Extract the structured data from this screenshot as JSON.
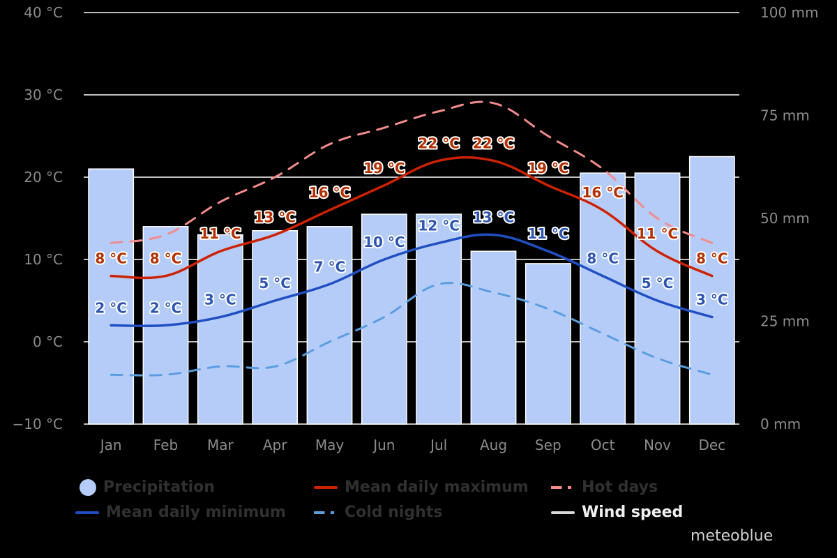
{
  "chart_data": {
    "type": "bar+line",
    "categories": [
      "Jan",
      "Feb",
      "Mar",
      "Apr",
      "May",
      "Jun",
      "Jul",
      "Aug",
      "Sep",
      "Oct",
      "Nov",
      "Dec"
    ],
    "precipitation": {
      "name": "Precipitation",
      "unit": "mm",
      "values": [
        62,
        48,
        46,
        47,
        48,
        51,
        51,
        42,
        39,
        61,
        61,
        65
      ]
    },
    "series": [
      {
        "name": "Mean daily maximum",
        "key": "max",
        "color": "#cc2200",
        "label_color": "#b33000",
        "style": "solid",
        "values": [
          8,
          8,
          11,
          13,
          16,
          19,
          22,
          22,
          19,
          16,
          11,
          8
        ],
        "labels": [
          "8 °C",
          "8 °C",
          "11 °C",
          "13 °C",
          "16 °C",
          "19 °C",
          "22 °C",
          "22 °C",
          "19 °C",
          "16 °C",
          "11 °C",
          "8 °C"
        ]
      },
      {
        "name": "Mean daily minimum",
        "key": "min",
        "color": "#1f4fc2",
        "label_color": "#2e55b0",
        "style": "solid",
        "values": [
          2,
          2,
          3,
          5,
          7,
          10,
          12,
          13,
          11,
          8,
          5,
          3
        ],
        "labels": [
          "2 °C",
          "2 °C",
          "3 °C",
          "5 °C",
          "7 °C",
          "10 °C",
          "12 °C",
          "13 °C",
          "11 °C",
          "8 °C",
          "5 °C",
          "3 °C"
        ]
      },
      {
        "name": "Hot days",
        "key": "hot",
        "color": "#f28c8c",
        "style": "dashed",
        "values": [
          12,
          13,
          17,
          20,
          24,
          26,
          28,
          29,
          25,
          21,
          15,
          12
        ]
      },
      {
        "name": "Cold nights",
        "key": "cold",
        "color": "#5b9ee0",
        "style": "dashed",
        "values": [
          -4,
          -4,
          -3,
          -3,
          0,
          3,
          7,
          6,
          4,
          1,
          -2,
          -4
        ]
      }
    ],
    "y_left": {
      "unit": "°C",
      "range": [
        -10,
        40
      ],
      "ticks": [
        "40 °C",
        "30 °C",
        "20 °C",
        "10 °C",
        "0 °C",
        "−10 °C"
      ],
      "tick_values": [
        40,
        30,
        20,
        10,
        0,
        -10
      ]
    },
    "y_right": {
      "unit": "mm",
      "range": [
        0,
        100
      ],
      "ticks": [
        "100 mm",
        "75 mm",
        "50 mm",
        "25 mm",
        "0 mm"
      ],
      "tick_values": [
        100,
        75,
        50,
        25,
        0
      ]
    },
    "grid": true,
    "legend_position": "bottom"
  },
  "colors": {
    "bar": "#b5ccf9",
    "grid": "#ffffff",
    "axis_text": "#8c8c8c",
    "legend_inactive": "#303030",
    "legend_active": "#f0f0f0"
  },
  "legend": {
    "precipitation": "Precipitation",
    "max": "Mean daily maximum",
    "hot": "Hot days",
    "min": "Mean daily minimum",
    "cold": "Cold nights",
    "wind": "Wind speed"
  },
  "credit": "meteoblue"
}
